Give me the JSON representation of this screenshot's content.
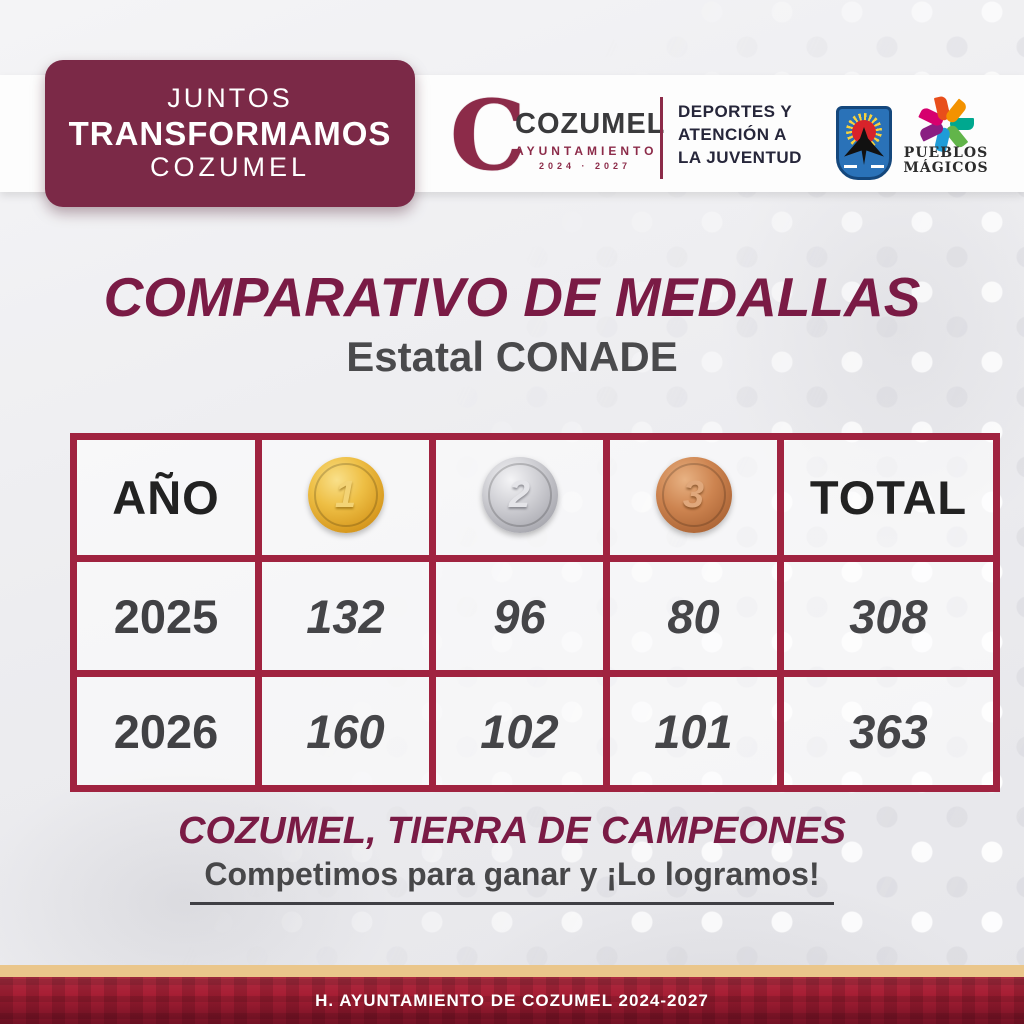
{
  "header": {
    "badge": {
      "line1": "JUNTOS",
      "line2": "TRANSFORMAMOS",
      "line3": "COZUMEL",
      "bg_color": "#7b2947"
    },
    "logo": {
      "letter": "C",
      "name": "COZUMEL",
      "sub": "AYUNTAMIENTO",
      "years": "2024 · 2027"
    },
    "department": {
      "line1": "DEPORTES Y",
      "line2": "ATENCIÓN A",
      "line3": "LA JUVENTUD"
    },
    "pueblos": {
      "line1": "PUEBLOS",
      "line2": "MÁGICOS",
      "pinwheel_colors": [
        "#00a88f",
        "#62b54a",
        "#1f9cd8",
        "#8a1e82",
        "#d6006e",
        "#e84e1b",
        "#f39200"
      ]
    }
  },
  "title": {
    "main": "COMPARATIVO DE MEDALLAS",
    "subtitle": "Estatal CONADE"
  },
  "table": {
    "headers": {
      "year": "AÑO",
      "total": "TOTAL"
    },
    "medals": [
      {
        "name": "gold",
        "number": "1",
        "color": "#e3ae2e"
      },
      {
        "name": "silver",
        "number": "2",
        "color": "#c4c4c8"
      },
      {
        "name": "bronze",
        "number": "3",
        "color": "#c77f4f"
      }
    ],
    "rows": [
      {
        "year": "2025",
        "gold": "132",
        "silver": "96",
        "bronze": "80",
        "total": "308"
      },
      {
        "year": "2026",
        "gold": "160",
        "silver": "102",
        "bronze": "101",
        "total": "363"
      }
    ]
  },
  "footer": {
    "note_title": "COZUMEL, TIERRA DE CAMPEONES",
    "note_sub": "Competimos para ganar y ¡Lo logramos!",
    "bar_text": "H. AYUNTAMIENTO DE COZUMEL 2024-2027"
  },
  "colors": {
    "maroon_accent": "#7a1b45",
    "badge_maroon": "#7b2947",
    "table_border_crimson": "#a02340",
    "footer_bar_red": "#a81f35",
    "gold_strip": "#eac68b",
    "shield_blue": "#2a72b8"
  },
  "chart_data": {
    "type": "table",
    "title": "COMPARATIVO DE MEDALLAS",
    "subtitle": "Estatal CONADE",
    "columns": [
      "AÑO",
      "Oro (1)",
      "Plata (2)",
      "Bronce (3)",
      "TOTAL"
    ],
    "rows": [
      [
        "2025",
        132,
        96,
        80,
        308
      ],
      [
        "2026",
        160,
        102,
        101,
        363
      ]
    ],
    "annotations": [
      "COZUMEL, TIERRA DE CAMPEONES",
      "Competimos para ganar y ¡Lo logramos!"
    ]
  }
}
